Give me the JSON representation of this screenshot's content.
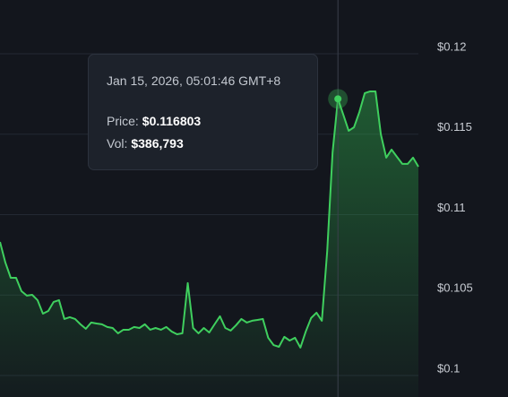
{
  "chart_data": {
    "type": "area",
    "series": [
      {
        "color": "#3fcf5e",
        "values": [
          0.10791,
          0.10663,
          0.10568,
          0.10568,
          0.10485,
          0.10457,
          0.10462,
          0.10429,
          0.10345,
          0.10362,
          0.10418,
          0.10429,
          0.10312,
          0.10323,
          0.10312,
          0.10279,
          0.10251,
          0.1029,
          0.10284,
          0.10279,
          0.10262,
          0.10256,
          0.10223,
          0.10245,
          0.10245,
          0.10262,
          0.10256,
          0.10279,
          0.10245,
          0.10256,
          0.10245,
          0.10262,
          0.10234,
          0.10217,
          0.10223,
          0.10535,
          0.10256,
          0.10223,
          0.10256,
          0.10228,
          0.10279,
          0.10329,
          0.10256,
          0.1024,
          0.10273,
          0.10312,
          0.1029,
          0.10301,
          0.10306,
          0.10312,
          0.10195,
          0.1015,
          0.10139,
          0.10201,
          0.10178,
          0.10195,
          0.10134,
          0.10234,
          0.10318,
          0.10351,
          0.10301,
          0.10735,
          0.11348,
          0.116803,
          0.11582,
          0.11482,
          0.11504,
          0.11599,
          0.11716,
          0.11727,
          0.11727,
          0.1146,
          0.11315,
          0.11365,
          0.1132,
          0.11276,
          0.11276,
          0.11315,
          0.11259
        ]
      }
    ],
    "ylim": [
      0.09827,
      0.12295
    ],
    "yticks": [
      {
        "value": 0.1,
        "label": "$0.1"
      },
      {
        "value": 0.105,
        "label": "$0.105"
      },
      {
        "value": 0.11,
        "label": "$0.11"
      },
      {
        "value": 0.115,
        "label": "$0.115"
      },
      {
        "value": 0.12,
        "label": "$0.12"
      }
    ],
    "grid": true,
    "tooltip": {
      "time": "Jan 15, 2026, 05:01:46 GMT+8",
      "price_label": "Price:",
      "price": {
        "value": 0.116803,
        "label": "$0.116803"
      },
      "vol_label": "Vol:",
      "vol": "$386,793"
    }
  }
}
